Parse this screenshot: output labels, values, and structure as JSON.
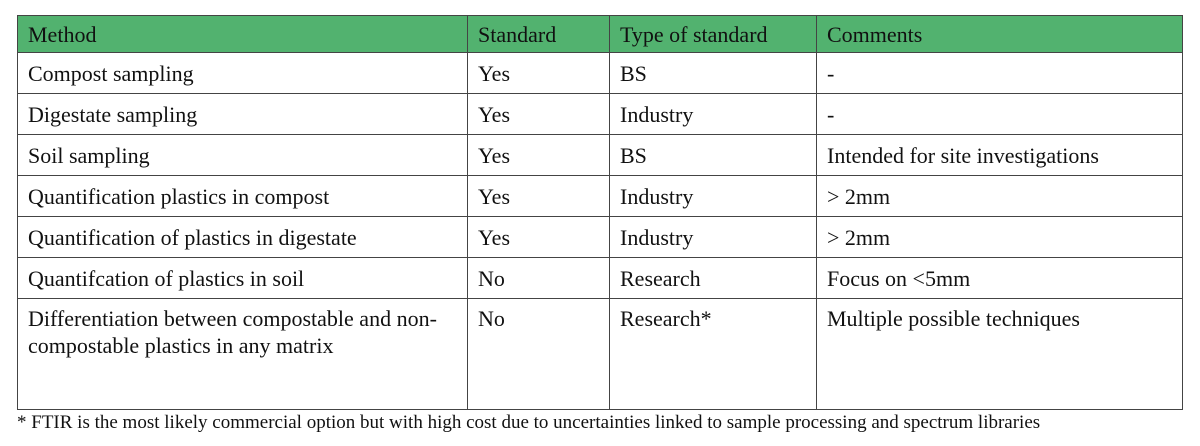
{
  "table": {
    "header": [
      "Method",
      "Standard",
      "Type of standard",
      "Comments"
    ],
    "rows": [
      [
        "Compost sampling",
        "Yes",
        "BS",
        "-"
      ],
      [
        "Digestate sampling",
        "Yes",
        "Industry",
        "-"
      ],
      [
        "Soil sampling",
        "Yes",
        "BS",
        "Intended for site investigations"
      ],
      [
        "Quantification plastics in compost",
        "Yes",
        "Industry",
        "> 2mm"
      ],
      [
        "Quantification of plastics in digestate",
        "Yes",
        "Industry",
        "> 2mm"
      ],
      [
        "Quantifcation of plastics in soil",
        "No",
        "Research",
        "Focus on <5mm"
      ],
      [
        "Differentiation between compostable and non-compostable plastics in any matrix",
        "No",
        "Research*",
        "Multiple possible techniques"
      ]
    ]
  },
  "footnote": "* FTIR is the most likely commercial option but with high cost due to uncertainties linked to sample processing and spectrum libraries"
}
